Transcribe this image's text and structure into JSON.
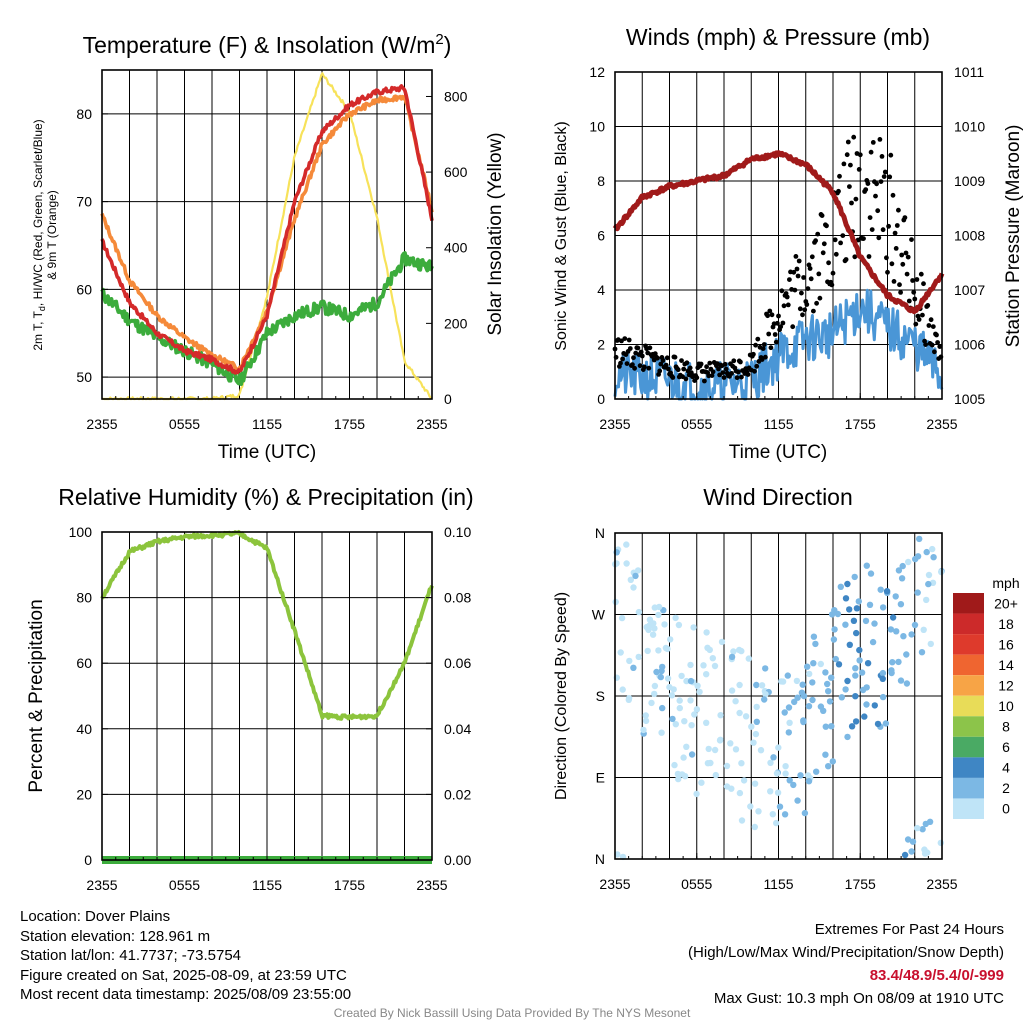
{
  "charts": {
    "temperature": {
      "title": "Temperature (F) & Insolation (W/m",
      "title_sup": "2",
      "title_end": ")",
      "ylabel_line1": "2m T, T",
      "ylabel_sub": "d",
      "ylabel_line1_end": ", HI/WC (Red, Green, Scarlet/Blue)",
      "ylabel_line2": "& 9m T (Orange)",
      "y2label": "Solar Insolation (Yellow)",
      "xlabel": "Time (UTC)",
      "xticks": [
        "2355",
        "0555",
        "1155",
        "1755",
        "2355"
      ],
      "yticks": [
        "50",
        "60",
        "70",
        "80"
      ],
      "y2ticks": [
        "0",
        "200",
        "400",
        "600",
        "800"
      ]
    },
    "winds": {
      "title": "Winds (mph) & Pressure (mb)",
      "ylabel": "Sonic Wind & Gust (Blue, Black)",
      "y2label": "Station Pressure (Maroon)",
      "xlabel": "Time (UTC)",
      "xticks": [
        "2355",
        "0555",
        "1155",
        "1755",
        "2355"
      ],
      "yticks": [
        "0",
        "2",
        "4",
        "6",
        "8",
        "10",
        "12"
      ],
      "y2ticks": [
        "1005",
        "1006",
        "1007",
        "1008",
        "1009",
        "1010",
        "1011"
      ]
    },
    "humidity": {
      "title": "Relative Humidity (%) & Precipitation (in)",
      "ylabel": "Percent & Precipitation",
      "xticks": [
        "2355",
        "0555",
        "1155",
        "1755",
        "2355"
      ],
      "yticks": [
        "0",
        "20",
        "40",
        "60",
        "80",
        "100"
      ],
      "y2ticks": [
        "0.00",
        "0.02",
        "0.04",
        "0.06",
        "0.08",
        "0.10"
      ]
    },
    "direction": {
      "title": "Wind Direction",
      "ylabel": "Direction (Colored By Speed)",
      "xticks": [
        "2355",
        "0555",
        "1155",
        "1755",
        "2355"
      ],
      "yticks": [
        "N",
        "E",
        "S",
        "W",
        "N"
      ],
      "legend_title": "mph",
      "legend_labels": [
        "20+",
        "18",
        "16",
        "14",
        "12",
        "10",
        "8",
        "6",
        "4",
        "2",
        "0"
      ],
      "legend_colors": [
        "#a01a1a",
        "#cc2a2a",
        "#de3a2c",
        "#ef6530",
        "#f7a446",
        "#e8dc58",
        "#8cc44a",
        "#4aaa64",
        "#3f86c4",
        "#7cb8e4",
        "#bfe4f7"
      ]
    }
  },
  "colors": {
    "temp_2m": "#d42a2a",
    "dewpoint": "#3cac3c",
    "temp_9m": "#f58a3a",
    "solar": "#f7e25a",
    "wind": "#4a96d6",
    "gust": "#000000",
    "pressure": "#a01a1a",
    "humidity": "#8cc43c",
    "precip": "#3cac3c",
    "extremes": "#c8102e"
  },
  "chart_data": [
    {
      "type": "line",
      "title": "Temperature (F) & Insolation (W/m2)",
      "xlabel": "Time (UTC)",
      "ylabel": "2m T, Td, HI/WC (Red, Green, Scarlet/Blue) & 9m T (Orange)",
      "y2label": "Solar Insolation (Yellow)",
      "x": [
        "2355",
        "0155",
        "0355",
        "0555",
        "0755",
        "0955",
        "1155",
        "1355",
        "1555",
        "1755",
        "1955",
        "2155",
        "2355"
      ],
      "ylim": [
        47.5,
        85
      ],
      "y2lim": [
        0,
        870
      ],
      "series": [
        {
          "name": "2m T",
          "values": [
            65.5,
            58.5,
            55.0,
            53.0,
            52.0,
            50.5,
            57.0,
            70.0,
            78.0,
            81.0,
            82.5,
            83.0,
            68.0
          ]
        },
        {
          "name": "Td",
          "values": [
            59.5,
            56.5,
            54.5,
            53.0,
            51.5,
            49.5,
            55.0,
            57.0,
            58.0,
            57.0,
            58.5,
            63.5,
            62.5
          ]
        },
        {
          "name": "9m T",
          "values": [
            68.5,
            61.0,
            57.0,
            54.5,
            52.5,
            51.0,
            57.5,
            68.0,
            76.5,
            80.0,
            81.5,
            82.0,
            69.0
          ]
        },
        {
          "name": "Solar Insolation",
          "values": [
            0,
            0,
            0,
            0,
            0,
            10,
            270,
            640,
            860,
            760,
            480,
            100,
            0
          ]
        }
      ]
    },
    {
      "type": "line",
      "title": "Winds (mph) & Pressure (mb)",
      "xlabel": "Time (UTC)",
      "ylabel": "Sonic Wind & Gust (Blue, Black)",
      "y2label": "Station Pressure (Maroon)",
      "x": [
        "2355",
        "0155",
        "0355",
        "0555",
        "0755",
        "0955",
        "1155",
        "1355",
        "1555",
        "1755",
        "1955",
        "2155",
        "2355"
      ],
      "ylim": [
        0,
        12
      ],
      "y2lim": [
        1005,
        1011
      ],
      "series": [
        {
          "name": "Sonic Wind",
          "values": [
            0.9,
            0.8,
            0.7,
            0.5,
            0.5,
            0.7,
            1.6,
            2.2,
            2.4,
            3.4,
            2.6,
            2.0,
            0.8
          ]
        },
        {
          "name": "Gust",
          "values": [
            1.8,
            1.5,
            1.2,
            1.0,
            1.0,
            1.3,
            3.2,
            4.5,
            6.0,
            8.0,
            7.0,
            4.0,
            1.5
          ]
        },
        {
          "name": "Station Pressure",
          "values": [
            1008.1,
            1008.7,
            1008.9,
            1009.0,
            1009.1,
            1009.4,
            1009.5,
            1009.3,
            1008.8,
            1007.6,
            1006.9,
            1006.6,
            1007.3
          ]
        }
      ]
    },
    {
      "type": "line",
      "title": "Relative Humidity (%) & Precipitation (in)",
      "ylabel": "Percent & Precipitation",
      "x": [
        "2355",
        "0155",
        "0355",
        "0555",
        "0755",
        "0955",
        "1155",
        "1355",
        "1555",
        "1755",
        "1955",
        "2155",
        "2355"
      ],
      "ylim": [
        0,
        100
      ],
      "y2lim": [
        0,
        0.1
      ],
      "series": [
        {
          "name": "Relative Humidity",
          "values": [
            80,
            94,
            97,
            98.5,
            99,
            99.5,
            95,
            70,
            44,
            43.5,
            44,
            60,
            84
          ]
        },
        {
          "name": "Precipitation",
          "values": [
            0,
            0,
            0,
            0,
            0,
            0,
            0,
            0,
            0,
            0,
            0,
            0,
            0
          ]
        }
      ]
    },
    {
      "type": "scatter",
      "title": "Wind Direction",
      "ylabel": "Direction (Colored By Speed)",
      "x": [
        "2355",
        "0155",
        "0355",
        "0555",
        "0755",
        "0955",
        "1155",
        "1355",
        "1555",
        "1755",
        "1955",
        "2155",
        "2355"
      ],
      "ylim": [
        0,
        360
      ],
      "yticks": [
        "N",
        "E",
        "S",
        "W",
        "N"
      ],
      "legend": "right",
      "series": [
        {
          "name": "Wind Direction",
          "values": [
            300,
            220,
            180,
            160,
            150,
            130,
            110,
            140,
            200,
            250,
            230,
            310,
            320
          ]
        }
      ]
    }
  ],
  "footer": {
    "location": "Location: Dover Plains",
    "elevation": "Station elevation: 128.961 m",
    "latlon": "Station lat/lon: 41.7737; -73.5754",
    "created": "Figure created on Sat, 2025-08-09, at 23:59 UTC",
    "recent": "Most recent data timestamp: 2025/08/09 23:55:00",
    "extremes_title": "Extremes For Past 24 Hours",
    "extremes_legend": "(High/Low/Max Wind/Precipitation/Snow Depth)",
    "extremes_values": "83.4/48.9/5.4/0/-999",
    "max_gust": "Max Gust: 10.3 mph On 08/09 at 1910 UTC",
    "credit": "Created By Nick Bassill Using Data Provided By The NYS Mesonet"
  }
}
